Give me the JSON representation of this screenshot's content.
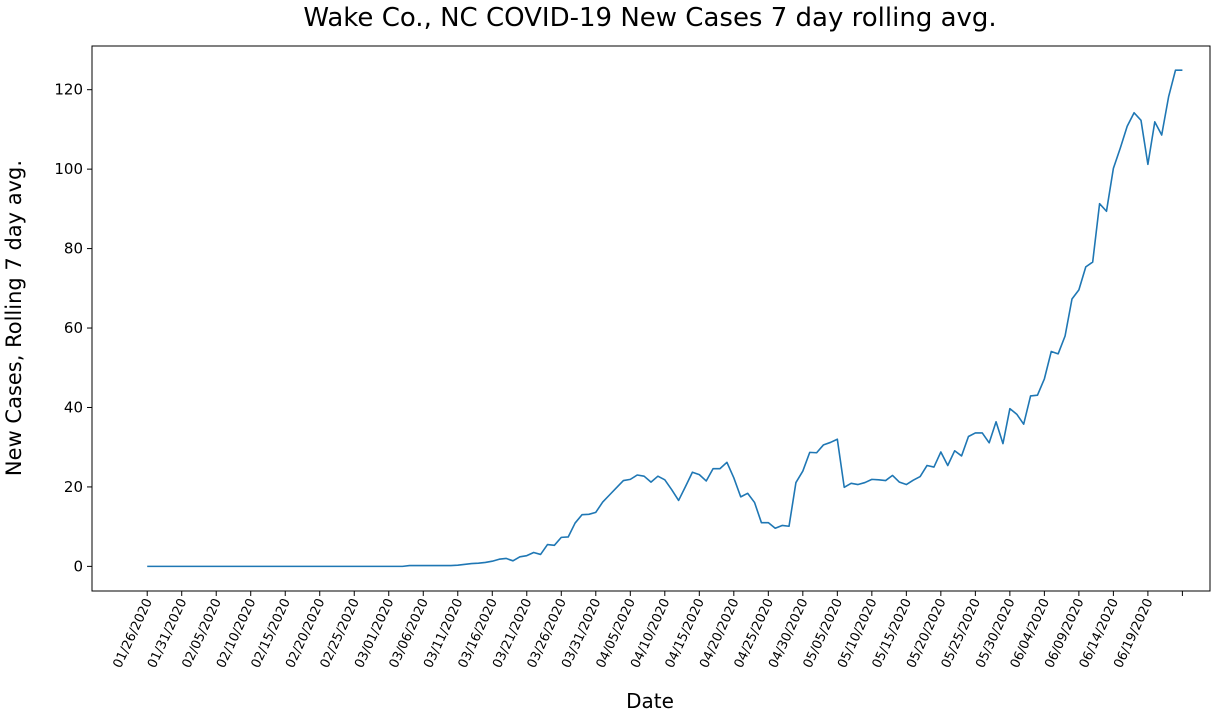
{
  "chart_data": {
    "type": "line",
    "title": "Wake Co., NC COVID-19 New Cases 7 day rolling avg.",
    "xlabel": "Date",
    "ylabel": "New Cases, Rolling 7 day avg.",
    "x_tick_labels": [
      "01/26/2020",
      "01/31/2020",
      "02/05/2020",
      "02/10/2020",
      "02/15/2020",
      "02/20/2020",
      "02/25/2020",
      "03/01/2020",
      "03/06/2020",
      "03/11/2020",
      "03/16/2020",
      "03/21/2020",
      "03/26/2020",
      "03/31/2020",
      "04/05/2020",
      "04/10/2020",
      "04/15/2020",
      "04/20/2020",
      "04/25/2020",
      "04/30/2020",
      "05/05/2020",
      "05/10/2020",
      "05/15/2020",
      "05/20/2020",
      "05/25/2020",
      "05/30/2020",
      "06/04/2020",
      "06/09/2020",
      "06/14/2020",
      "06/19/2020"
    ],
    "y_ticks": [
      0,
      20,
      40,
      60,
      80,
      100,
      120
    ],
    "ylim": [
      -6.2,
      131
    ],
    "xlim": [
      "01/18/2020",
      "06/28/2020"
    ],
    "grid": false,
    "line_color": "#1f77b4",
    "series": [
      {
        "x": [
          "01/26/2020",
          "03/03/2020",
          "03/04/2020",
          "03/10/2020",
          "03/11/2020",
          "03/13/2020",
          "03/14/2020",
          "03/15/2020",
          "03/16/2020",
          "03/17/2020",
          "03/18/2020",
          "03/19/2020",
          "03/20/2020",
          "03/21/2020",
          "03/22/2020",
          "03/23/2020",
          "03/24/2020",
          "03/25/2020",
          "03/26/2020",
          "03/27/2020",
          "03/28/2020",
          "03/29/2020",
          "03/30/2020",
          "03/31/2020",
          "04/01/2020",
          "04/02/2020",
          "04/03/2020",
          "04/04/2020",
          "04/05/2020",
          "04/06/2020",
          "04/07/2020",
          "04/08/2020",
          "04/09/2020",
          "04/10/2020",
          "04/11/2020",
          "04/12/2020",
          "04/13/2020",
          "04/14/2020",
          "04/15/2020",
          "04/16/2020",
          "04/17/2020",
          "04/18/2020",
          "04/19/2020",
          "04/20/2020",
          "04/21/2020",
          "04/22/2020",
          "04/23/2020",
          "04/24/2020",
          "04/25/2020",
          "04/26/2020",
          "04/27/2020",
          "04/28/2020",
          "04/29/2020",
          "04/30/2020",
          "05/01/2020",
          "05/02/2020",
          "05/03/2020",
          "05/04/2020",
          "05/05/2020",
          "05/06/2020",
          "05/07/2020",
          "05/08/2020",
          "05/09/2020",
          "05/10/2020",
          "05/11/2020",
          "05/12/2020",
          "05/13/2020",
          "05/14/2020",
          "05/15/2020",
          "05/16/2020",
          "05/17/2020",
          "05/18/2020",
          "05/19/2020",
          "05/20/2020",
          "05/21/2020",
          "05/22/2020",
          "05/23/2020",
          "05/24/2020",
          "05/25/2020",
          "05/26/2020",
          "05/27/2020",
          "05/28/2020",
          "05/29/2020",
          "05/30/2020",
          "05/31/2020",
          "06/01/2020",
          "06/02/2020",
          "06/03/2020",
          "06/04/2020",
          "06/05/2020",
          "06/06/2020",
          "06/07/2020",
          "06/08/2020",
          "06/09/2020",
          "06/10/2020",
          "06/11/2020",
          "06/12/2020",
          "06/13/2020",
          "06/14/2020",
          "06/15/2020",
          "06/16/2020",
          "06/17/2020",
          "06/18/2020",
          "06/19/2020",
          "06/20/2020",
          "06/21/2020",
          "06/22/2020",
          "06/23/2020",
          "06/24/2020"
        ],
        "values": [
          0,
          0,
          0.2,
          0.2,
          0.3,
          0.7,
          0.8,
          1.0,
          1.3,
          1.8,
          2.0,
          1.4,
          2.4,
          2.7,
          3.5,
          3.0,
          5.5,
          5.3,
          7.3,
          7.4,
          10.9,
          13.0,
          13.1,
          13.6,
          16.2,
          18.0,
          19.8,
          21.6,
          21.9,
          23.0,
          22.7,
          21.2,
          22.7,
          21.8,
          19.3,
          16.6,
          20.1,
          23.7,
          23.1,
          21.5,
          24.6,
          24.6,
          26.2,
          22.3,
          17.5,
          18.4,
          16.1,
          11.0,
          11.0,
          9.6,
          10.3,
          10.1,
          21.1,
          24.0,
          28.7,
          28.6,
          30.6,
          31.2,
          32.0,
          19.9,
          20.9,
          20.6,
          21.1,
          21.9,
          21.8,
          21.6,
          22.9,
          21.2,
          20.6,
          21.7,
          22.6,
          25.4,
          25.0,
          28.8,
          25.4,
          29.1,
          27.8,
          32.7,
          33.6,
          33.6,
          31.1,
          36.4,
          30.9,
          39.7,
          38.3,
          35.8,
          42.9,
          43.1,
          47.2,
          54.1,
          53.5,
          58.0,
          67.3,
          69.6,
          75.4,
          76.6,
          91.3,
          89.4,
          100.2,
          105.3,
          110.8,
          114.2,
          112.3,
          101.2,
          111.9,
          108.6,
          118.2,
          124.9,
          124.9
        ]
      }
    ]
  }
}
